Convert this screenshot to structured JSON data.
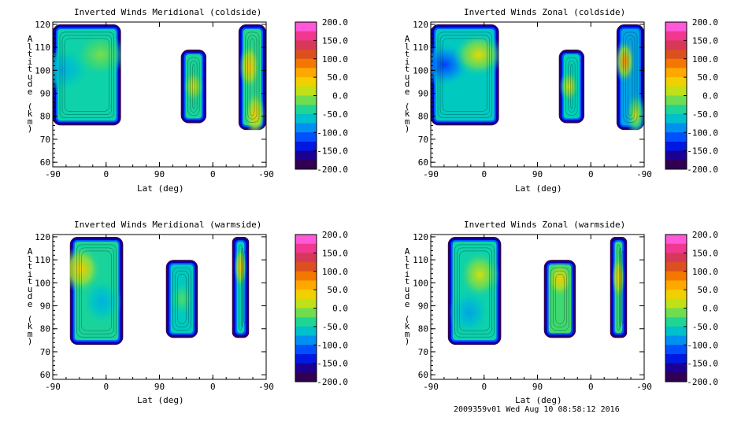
{
  "chart_data": [
    {
      "type": "heatmap",
      "title": "Inverted Winds Meridional (coldside)",
      "xlabel": "Lat (deg)",
      "ylabel": "Altitude (km)",
      "x_tick_labels": [
        "-90",
        "0",
        "90",
        "0",
        "-90"
      ],
      "y_ticks": [
        60,
        70,
        80,
        90,
        100,
        110,
        120
      ],
      "ylim": [
        58,
        121
      ],
      "colorbar": {
        "min": -200.0,
        "max": 200.0,
        "tick_labels": [
          "200.0",
          "150.0",
          "100.0",
          "50.0",
          "0.0",
          "-50.0",
          "-100.0",
          "-150.0",
          "-200.0"
        ]
      },
      "regions": [
        {
          "name": "left",
          "alt_range": [
            76,
            120
          ],
          "typical_value": -45,
          "blobs": [
            {
              "value": -75
            },
            {
              "value": -10
            }
          ]
        },
        {
          "name": "middle",
          "alt_range": [
            77,
            109
          ],
          "typical_value": -40,
          "blobs": [
            {
              "value": 20
            }
          ]
        },
        {
          "name": "right",
          "alt_range": [
            74,
            120
          ],
          "typical_value": -35,
          "blobs": [
            {
              "value": 40
            },
            {
              "value": 50
            }
          ]
        }
      ]
    },
    {
      "type": "heatmap",
      "title": "Inverted Winds Zonal (coldside)",
      "xlabel": "Lat (deg)",
      "ylabel": "Altitude (km)",
      "x_tick_labels": [
        "-90",
        "0",
        "90",
        "0",
        "-90"
      ],
      "y_ticks": [
        60,
        70,
        80,
        90,
        100,
        110,
        120
      ],
      "ylim": [
        58,
        121
      ],
      "colorbar": {
        "min": -200.0,
        "max": 200.0,
        "tick_labels": [
          "200.0",
          "150.0",
          "100.0",
          "50.0",
          "0.0",
          "-50.0",
          "-100.0",
          "-150.0",
          "-200.0"
        ]
      },
      "regions": [
        {
          "name": "left",
          "alt_range": [
            76,
            120
          ],
          "typical_value": -55,
          "blobs": [
            {
              "value": -120
            },
            {
              "value": 30
            }
          ]
        },
        {
          "name": "middle",
          "alt_range": [
            77,
            109
          ],
          "typical_value": -50,
          "blobs": [
            {
              "value": 25
            }
          ]
        },
        {
          "name": "right",
          "alt_range": [
            74,
            120
          ],
          "typical_value": -80,
          "blobs": [
            {
              "value": 80
            },
            {
              "value": 20
            }
          ]
        }
      ]
    },
    {
      "type": "heatmap",
      "title": "Inverted Winds Meridional (warmside)",
      "xlabel": "Lat (deg)",
      "ylabel": "Altitude (km)",
      "x_tick_labels": [
        "-90",
        "0",
        "90",
        "0",
        "-90"
      ],
      "y_ticks": [
        60,
        70,
        80,
        90,
        100,
        110,
        120
      ],
      "ylim": [
        58,
        121
      ],
      "colorbar": {
        "min": -200.0,
        "max": 200.0,
        "tick_labels": [
          "200.0",
          "150.0",
          "100.0",
          "50.0",
          "0.0",
          "-50.0",
          "-100.0",
          "-150.0",
          "-200.0"
        ]
      },
      "regions": [
        {
          "name": "left",
          "alt_range": [
            73,
            120
          ],
          "typical_value": -40,
          "blobs": [
            {
              "value": 40
            },
            {
              "value": -75
            }
          ]
        },
        {
          "name": "middle",
          "alt_range": [
            76,
            110
          ],
          "typical_value": -55,
          "blobs": [
            {
              "value": -20
            }
          ]
        },
        {
          "name": "right",
          "alt_range": [
            76,
            120
          ],
          "typical_value": -50,
          "blobs": [
            {
              "value": 50
            }
          ]
        }
      ]
    },
    {
      "type": "heatmap",
      "title": "Inverted Winds Zonal (warmside)",
      "xlabel": "Lat (deg)",
      "ylabel": "Altitude (km)",
      "x_tick_labels": [
        "-90",
        "0",
        "90",
        "0",
        "-90"
      ],
      "y_ticks": [
        60,
        70,
        80,
        90,
        100,
        110,
        120
      ],
      "ylim": [
        58,
        121
      ],
      "colorbar": {
        "min": -200.0,
        "max": 200.0,
        "tick_labels": [
          "200.0",
          "150.0",
          "100.0",
          "50.0",
          "0.0",
          "-50.0",
          "-100.0",
          "-150.0",
          "-200.0"
        ]
      },
      "regions": [
        {
          "name": "left",
          "alt_range": [
            73,
            120
          ],
          "typical_value": -45,
          "blobs": [
            {
              "value": 20
            },
            {
              "value": -80
            }
          ]
        },
        {
          "name": "middle",
          "alt_range": [
            76,
            110
          ],
          "typical_value": -25,
          "blobs": [
            {
              "value": 40
            }
          ]
        },
        {
          "name": "right",
          "alt_range": [
            76,
            120
          ],
          "typical_value": -30,
          "blobs": [
            {
              "value": 40
            }
          ]
        }
      ]
    }
  ],
  "footer": {
    "timestamp": "2009359v01 Wed Aug 10 08:58:12 2016"
  }
}
